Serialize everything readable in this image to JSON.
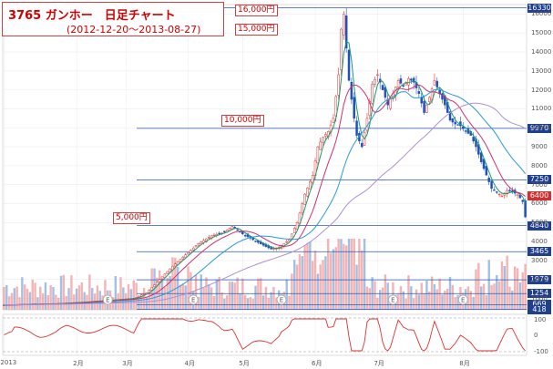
{
  "title": {
    "line1": "3765 ガンホー　日足チャート",
    "line2": "(2012-12-20～2013-08-27)"
  },
  "annotations": [
    {
      "key": "a16000",
      "text": "16,000円"
    },
    {
      "key": "a15000",
      "text": "15,000円"
    },
    {
      "key": "a10000",
      "text": "10,000円"
    },
    {
      "key": "a5000",
      "text": "5,000円"
    }
  ],
  "price_labels": [
    {
      "value": 16330,
      "text": "16330",
      "color": "#1f3f8f"
    },
    {
      "value": 9970,
      "text": "9970",
      "color": "#1f3f8f"
    },
    {
      "value": 7250,
      "text": "7250",
      "color": "#1f3f8f"
    },
    {
      "value": 6400,
      "text": "6400",
      "color": "#d03030"
    },
    {
      "value": 4840,
      "text": "4840",
      "color": "#1f3f8f"
    },
    {
      "value": 3465,
      "text": "3465",
      "color": "#1f3f8f"
    },
    {
      "value": 1979,
      "text": "1979",
      "color": "#1f3f8f"
    },
    {
      "value": 1254,
      "text": "1254",
      "color": "#1f3f8f"
    },
    {
      "value": 669,
      "text": "669",
      "color": "#1f3f8f"
    },
    {
      "value": 418,
      "text": "418",
      "color": "#1f3f8f"
    }
  ],
  "y_ticks": [
    "16000",
    "15000",
    "14000",
    "13000",
    "12000",
    "11000",
    "10000",
    "9000",
    "8000",
    "7000",
    "6000",
    "5000",
    "4000",
    "3000",
    "2000",
    "1000"
  ],
  "osc_ticks": [
    "100",
    "0",
    "-100"
  ],
  "x_ticks": [
    {
      "label": "2013",
      "pos": 0
    },
    {
      "label": "2月",
      "pos": 1
    },
    {
      "label": "3月",
      "pos": 2
    },
    {
      "label": "4月",
      "pos": 3
    },
    {
      "label": "5月",
      "pos": 4
    },
    {
      "label": "6月",
      "pos": 5
    },
    {
      "label": "7月",
      "pos": 6
    },
    {
      "label": "8月",
      "pos": 7
    }
  ],
  "chart_data": {
    "type": "candlestick",
    "title": "3765 ガンホー　日足チャート",
    "subtitle": "(2012-12-20～2013-08-27)",
    "ylim": [
      400,
      16500
    ],
    "close_path": [
      [
        0,
        650
      ],
      [
        10,
        700
      ],
      [
        20,
        720
      ],
      [
        30,
        800
      ],
      [
        40,
        900
      ],
      [
        50,
        1000
      ],
      [
        55,
        1300
      ],
      [
        60,
        2000
      ],
      [
        65,
        2700
      ],
      [
        70,
        3300
      ],
      [
        75,
        3900
      ],
      [
        80,
        4300
      ],
      [
        85,
        4500
      ],
      [
        88,
        4800
      ],
      [
        92,
        4400
      ],
      [
        96,
        4100
      ],
      [
        100,
        3800
      ],
      [
        103,
        3600
      ],
      [
        106,
        3700
      ],
      [
        110,
        4100
      ],
      [
        113,
        5000
      ],
      [
        116,
        6500
      ],
      [
        119,
        7500
      ],
      [
        121,
        9000
      ],
      [
        123,
        9500
      ],
      [
        125,
        9800
      ],
      [
        127,
        10500
      ],
      [
        129,
        12800
      ],
      [
        130,
        15200
      ],
      [
        131,
        16000
      ],
      [
        132,
        14200
      ],
      [
        133,
        12500
      ],
      [
        134,
        11500
      ],
      [
        135,
        10500
      ],
      [
        136,
        9600
      ],
      [
        138,
        9000
      ],
      [
        140,
        10500
      ],
      [
        142,
        12300
      ],
      [
        144,
        12800
      ],
      [
        146,
        12000
      ],
      [
        148,
        11200
      ],
      [
        150,
        11800
      ],
      [
        152,
        12500
      ],
      [
        154,
        12200
      ],
      [
        156,
        12600
      ],
      [
        158,
        12400
      ],
      [
        160,
        11800
      ],
      [
        162,
        10800
      ],
      [
        164,
        11600
      ],
      [
        166,
        12500
      ],
      [
        168,
        11800
      ],
      [
        170,
        11200
      ],
      [
        172,
        10400
      ],
      [
        174,
        10200
      ],
      [
        176,
        10100
      ],
      [
        178,
        9800
      ],
      [
        180,
        9600
      ],
      [
        182,
        9000
      ],
      [
        184,
        8200
      ],
      [
        186,
        7500
      ],
      [
        188,
        6800
      ],
      [
        190,
        6600
      ],
      [
        192,
        6400
      ],
      [
        194,
        6700
      ],
      [
        196,
        6600
      ],
      [
        198,
        6500
      ],
      [
        200,
        6100
      ],
      [
        201,
        5300
      ]
    ],
    "moving_averages": [
      {
        "period": "short",
        "color": "#1a9a6a",
        "lag": 3
      },
      {
        "period": "medium",
        "color": "#d0306a",
        "lag": 10
      },
      {
        "period": "long",
        "color": "#2a9ad8",
        "lag": 25
      },
      {
        "period": "very-long",
        "color": "#b090d0",
        "lag": 60
      }
    ],
    "support_lines": [
      16330,
      9970,
      7250,
      4840,
      3465,
      1979,
      1254,
      669,
      418
    ],
    "volume": {
      "max": 3000
    },
    "oscillator": {
      "range": [
        -100,
        100
      ]
    }
  }
}
